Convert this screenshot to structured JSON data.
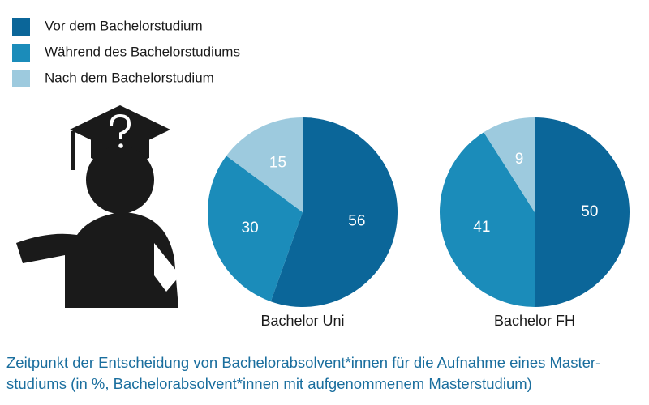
{
  "chart_data": [
    {
      "type": "pie",
      "title": "Bachelor Uni",
      "categories": [
        "Vor dem Bachelorstudium",
        "Während des Bachelorstudiums",
        "Nach dem Bachelorstudium"
      ],
      "values": [
        56,
        30,
        15
      ],
      "colors": [
        "#0b6699",
        "#1b8cba",
        "#9dcade"
      ],
      "legend": "top-left"
    },
    {
      "type": "pie",
      "title": "Bachelor FH",
      "categories": [
        "Vor dem Bachelorstudium",
        "Während des Bachelorstudiums",
        "Nach dem Bachelorstudium"
      ],
      "values": [
        50,
        41,
        9
      ],
      "colors": [
        "#0b6699",
        "#1b8cba",
        "#9dcade"
      ]
    }
  ],
  "caption": [
    "Zeitpunkt der Entscheidung von Bachelorabsolvent*innen für die Aufnahme eines Master-",
    "studiums (in %, Bachelorabsolvent*innen mit aufgenommenem Masterstudium)"
  ]
}
